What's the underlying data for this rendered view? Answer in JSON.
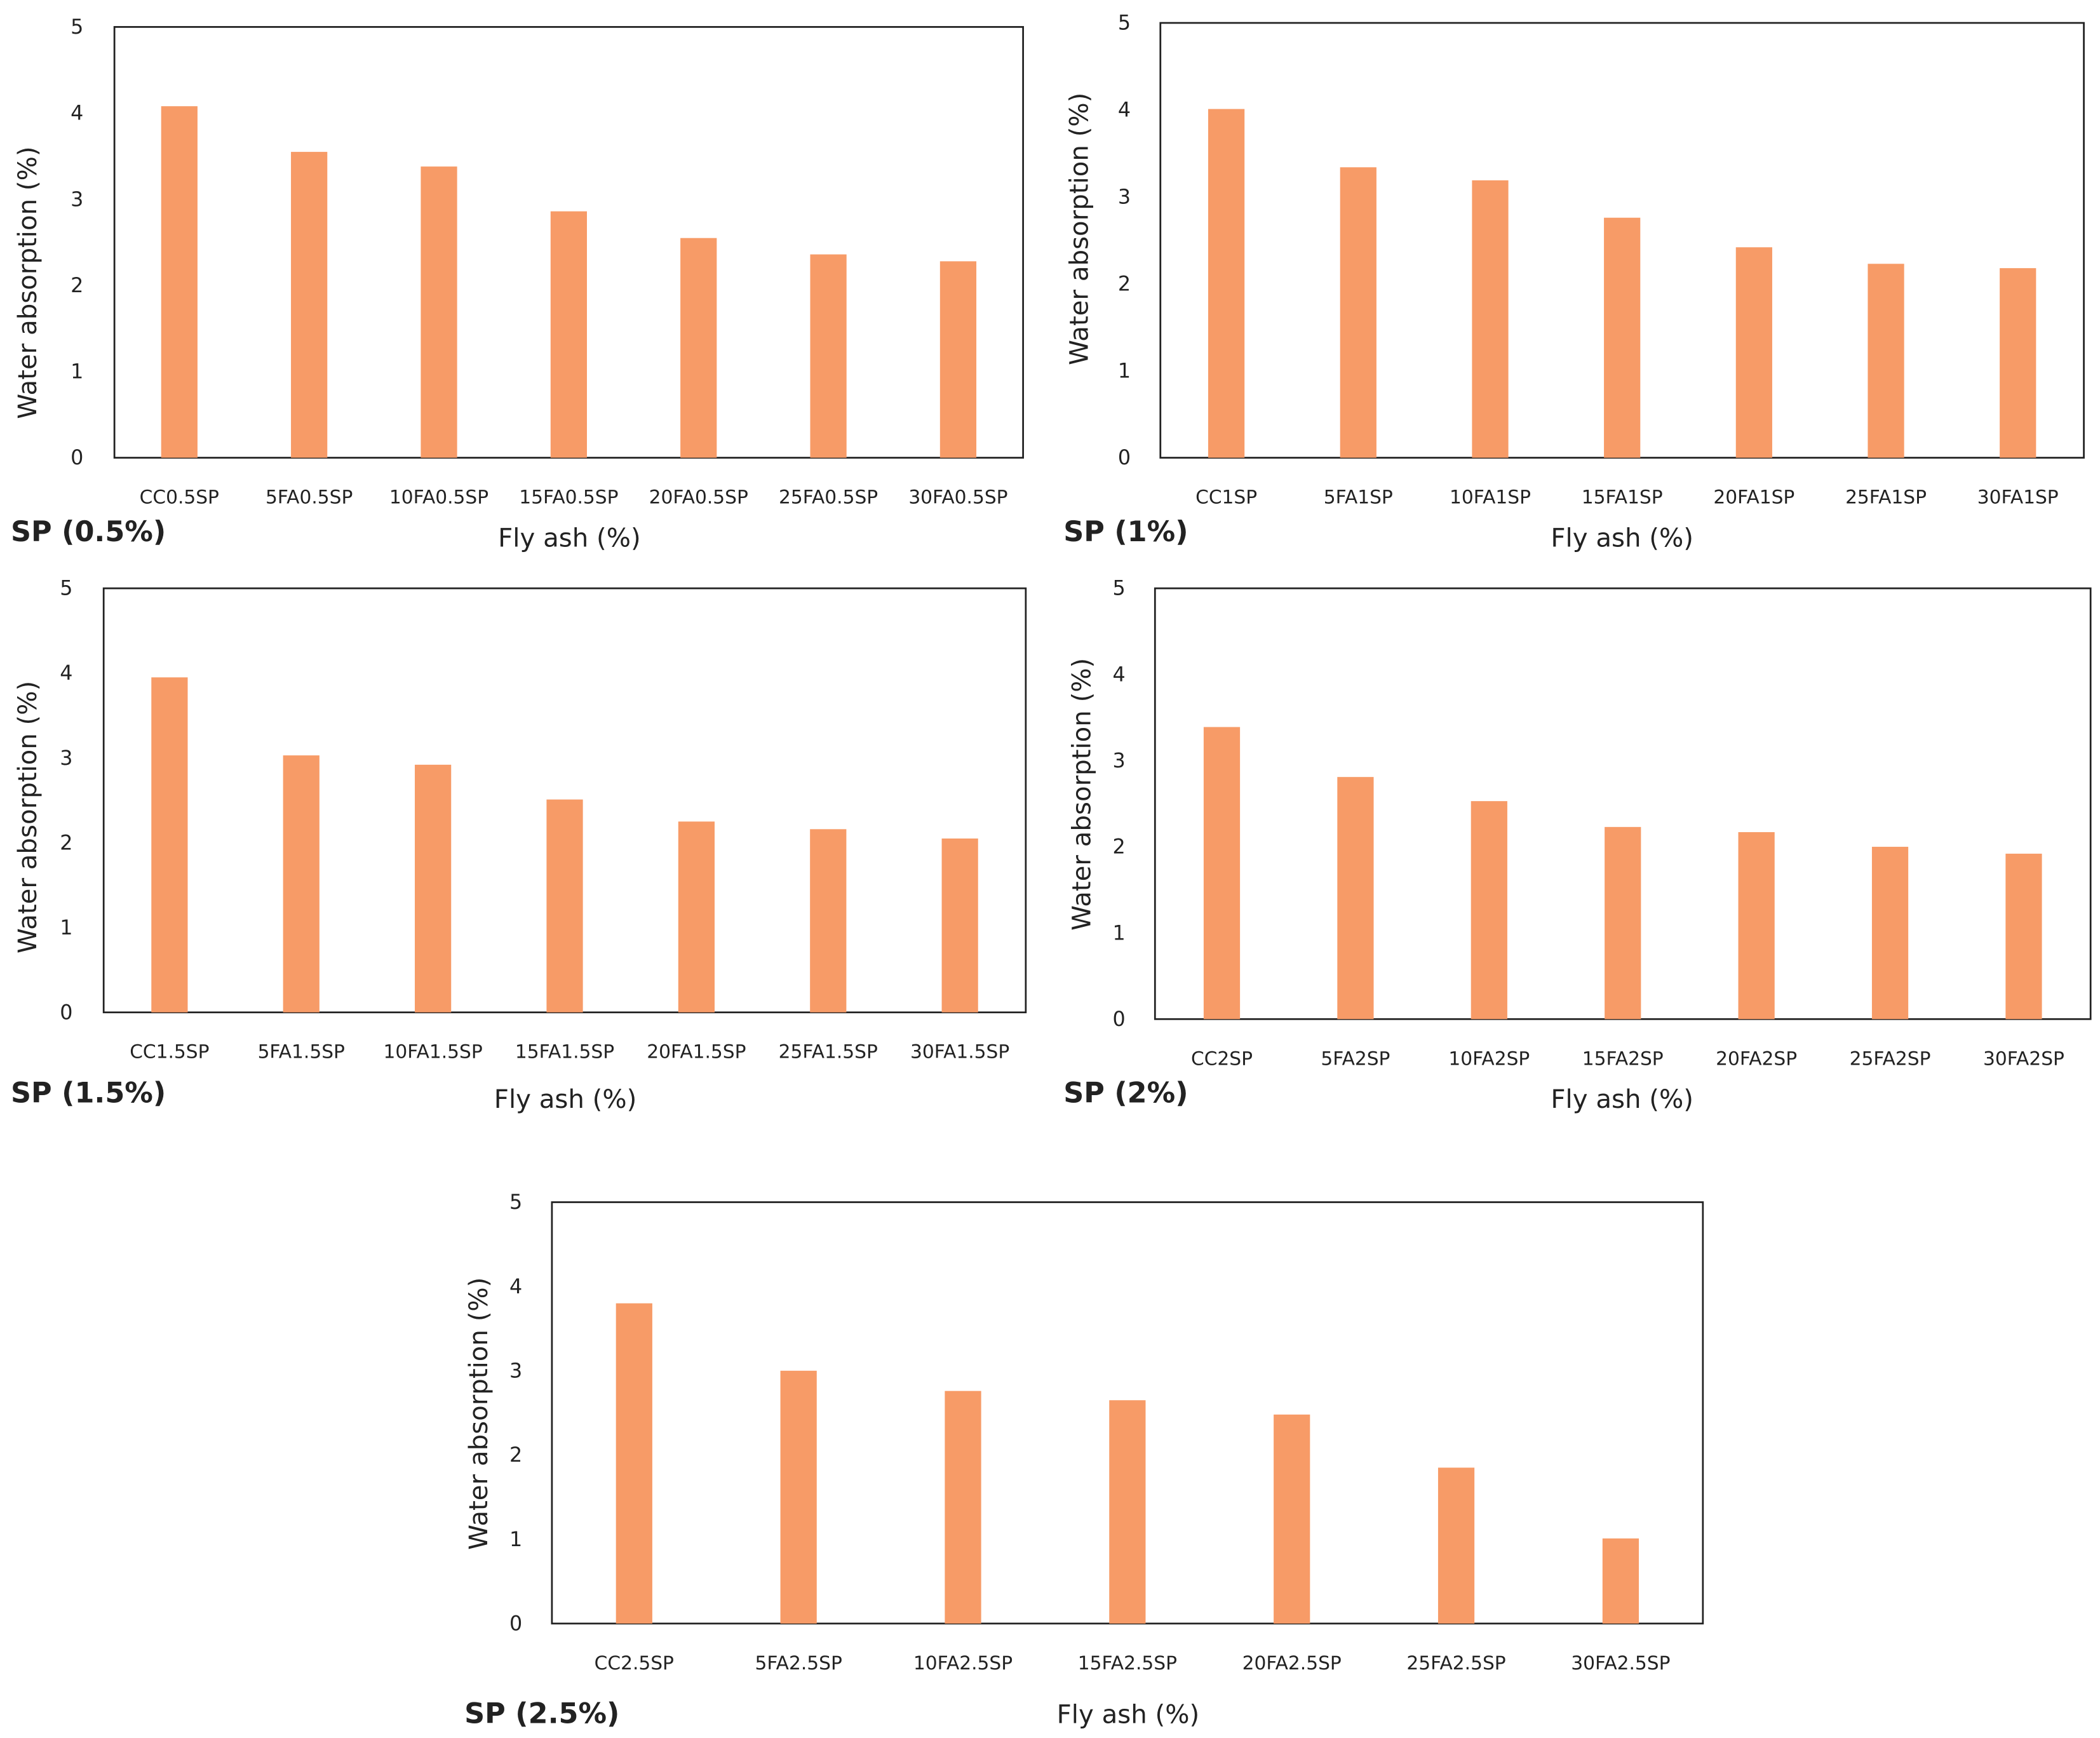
{
  "bar_color": "#F79B67",
  "chart_data": [
    {
      "type": "bar",
      "panel_label": "SP (0.5%)",
      "xlabel": "Fly ash (%)",
      "ylabel": "Water absorption (%)",
      "ylim": [
        0,
        5
      ],
      "yticks": [
        "0",
        "1",
        "2",
        "3",
        "4",
        "5"
      ],
      "grid": false,
      "categories": [
        "CC0.5SP",
        "5FA0.5SP",
        "10FA0.5SP",
        "15FA0.5SP",
        "20FA0.5SP",
        "25FA0.5SP",
        "30FA0.5SP"
      ],
      "values": [
        4.08,
        3.55,
        3.38,
        2.86,
        2.55,
        2.36,
        2.28
      ]
    },
    {
      "type": "bar",
      "panel_label": "SP (1%)",
      "xlabel": "Fly ash (%)",
      "ylabel": "Water absorption (%)",
      "ylim": [
        0,
        5
      ],
      "yticks": [
        "0",
        "1",
        "2",
        "3",
        "4",
        "5"
      ],
      "grid": false,
      "categories": [
        "CC1SP",
        "5FA1SP",
        "10FA1SP",
        "15FA1SP",
        "20FA1SP",
        "25FA1SP",
        "30FA1SP"
      ],
      "values": [
        4.01,
        3.34,
        3.19,
        2.76,
        2.42,
        2.23,
        2.18
      ]
    },
    {
      "type": "bar",
      "panel_label": "SP (1.5%)",
      "xlabel": "Fly ash (%)",
      "ylabel": "Water absorption (%)",
      "ylim": [
        0,
        5
      ],
      "yticks": [
        "0",
        "1",
        "2",
        "3",
        "4",
        "5"
      ],
      "grid": false,
      "categories": [
        "CC1.5SP",
        "5FA1.5SP",
        "10FA1.5SP",
        "15FA1.5SP",
        "20FA1.5SP",
        "25FA1.5SP",
        "30FA1.5SP"
      ],
      "values": [
        3.95,
        3.03,
        2.92,
        2.51,
        2.25,
        2.16,
        2.05
      ]
    },
    {
      "type": "bar",
      "panel_label": "SP (2%)",
      "xlabel": "Fly ash (%)",
      "ylabel": "Water absorption (%)",
      "ylim": [
        0,
        5
      ],
      "yticks": [
        "0",
        "1",
        "2",
        "3",
        "4",
        "5"
      ],
      "grid": false,
      "categories": [
        "CC2SP",
        "5FA2SP",
        "10FA2SP",
        "15FA2SP",
        "20FA2SP",
        "25FA2SP",
        "30FA2SP"
      ],
      "values": [
        3.39,
        2.81,
        2.53,
        2.23,
        2.17,
        2.0,
        1.92
      ]
    },
    {
      "type": "bar",
      "panel_label": "SP (2.5%)",
      "xlabel": "Fly ash (%)",
      "ylabel": "Water absorption (%)",
      "ylim": [
        0,
        5
      ],
      "yticks": [
        "0",
        "1",
        "2",
        "3",
        "4",
        "5"
      ],
      "grid": false,
      "categories": [
        "CC2.5SP",
        "5FA2.5SP",
        "10FA2.5SP",
        "15FA2.5SP",
        "20FA2.5SP",
        "25FA2.5SP",
        "30FA2.5SP"
      ],
      "values": [
        3.8,
        3.0,
        2.76,
        2.65,
        2.48,
        1.85,
        1.01
      ]
    }
  ]
}
